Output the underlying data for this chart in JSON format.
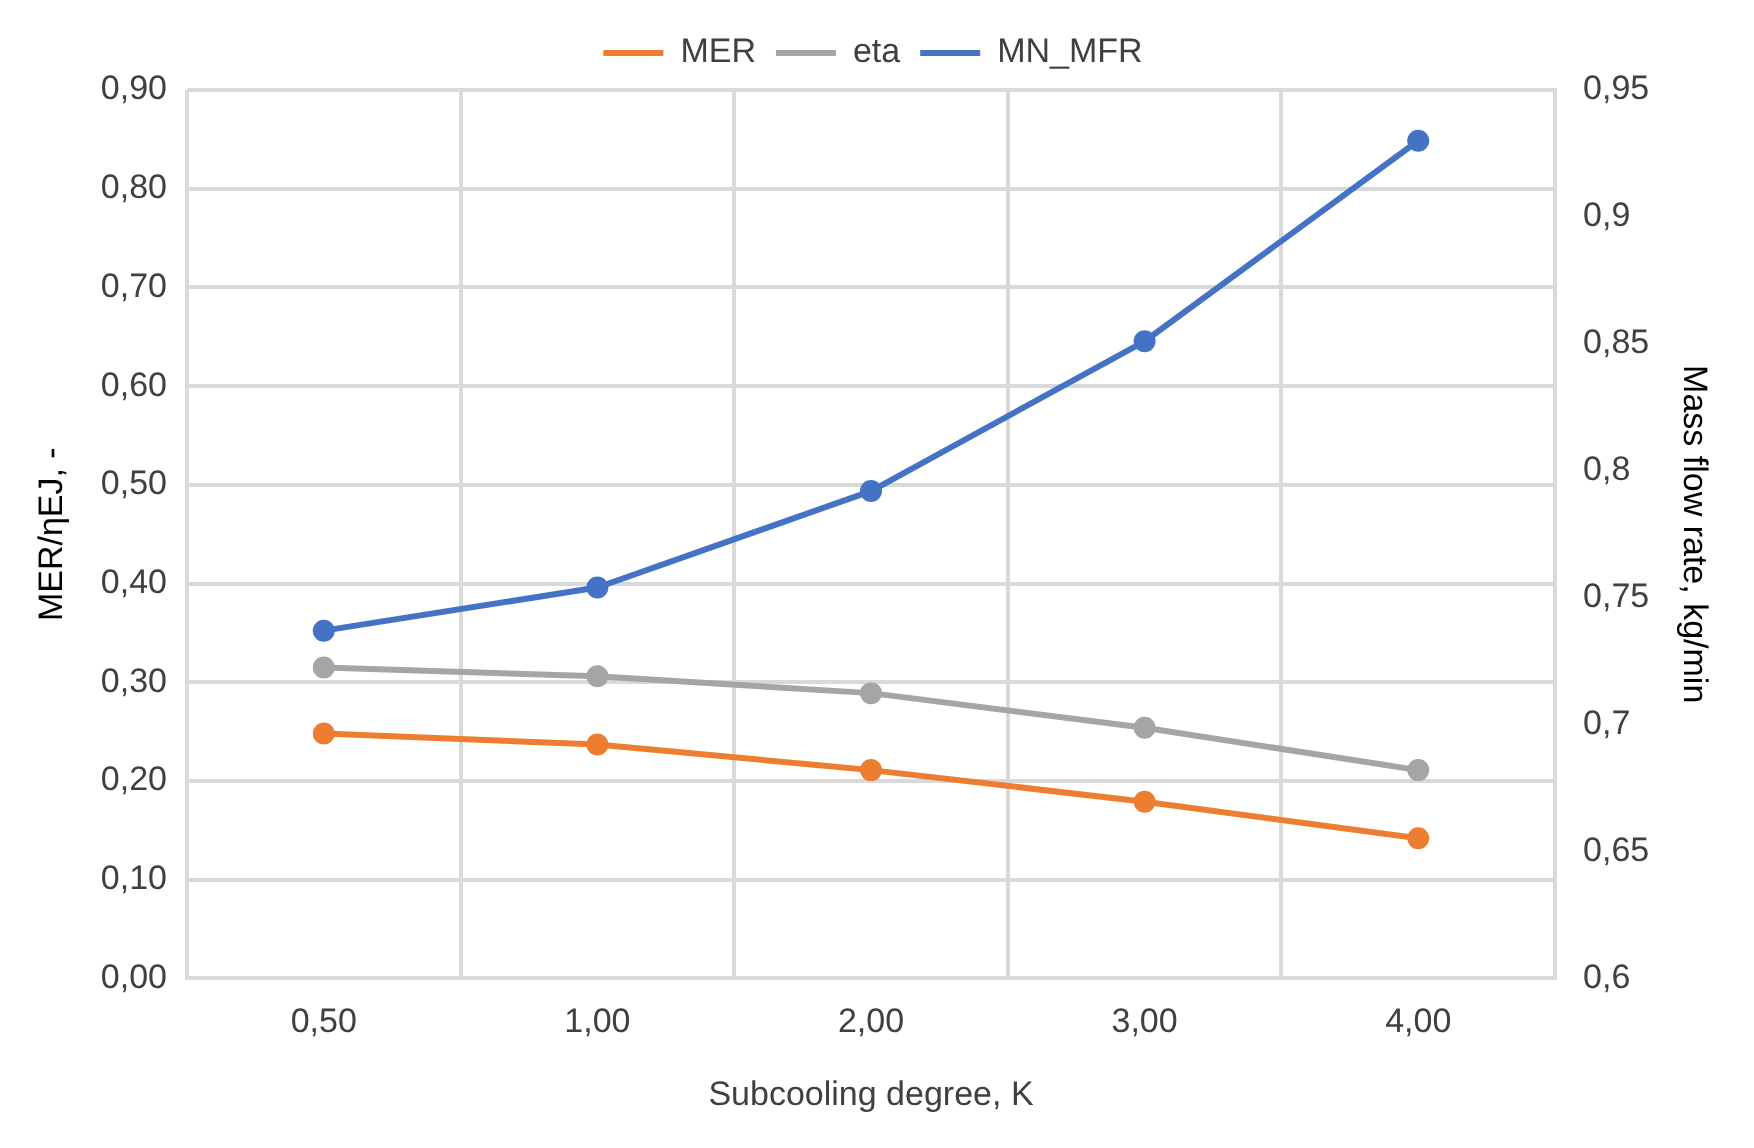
{
  "chart_data": {
    "type": "line",
    "xlabel": "Subcooling degree, K",
    "ylabel": "MER/ηEJ, -",
    "y2label": "Mass flow rate, kg/min",
    "categories": [
      "0,50",
      "1,00",
      "2,00",
      "3,00",
      "4,00"
    ],
    "series": [
      {
        "name": "MER",
        "color": "#ed7d31",
        "values": [
          0.248,
          0.237,
          0.211,
          0.179,
          0.142
        ]
      },
      {
        "name": "eta",
        "color": "#a5a5a5",
        "values": [
          0.315,
          0.306,
          0.289,
          0.254,
          0.211
        ]
      },
      {
        "name": "MN_MFR",
        "color": "#4472c4",
        "axis": "y2",
        "values": [
          0.737,
          0.754,
          0.792,
          0.851,
          0.93
        ]
      }
    ],
    "ylim": [
      0,
      0.9
    ],
    "yticks": [
      {
        "value": 0,
        "label": "0,00"
      },
      {
        "value": 0.1,
        "label": "0,10"
      },
      {
        "value": 0.2,
        "label": "0,20"
      },
      {
        "value": 0.3,
        "label": "0,30"
      },
      {
        "value": 0.4,
        "label": "0,40"
      },
      {
        "value": 0.5,
        "label": "0,50"
      },
      {
        "value": 0.6,
        "label": "0,60"
      },
      {
        "value": 0.7,
        "label": "0,70"
      },
      {
        "value": 0.8,
        "label": "0,80"
      },
      {
        "value": 0.9,
        "label": "0,90"
      }
    ],
    "y2lim": [
      0.6,
      0.95
    ],
    "y2ticks": [
      {
        "value": 0.6,
        "label": "0,6"
      },
      {
        "value": 0.65,
        "label": "0,65"
      },
      {
        "value": 0.7,
        "label": "0,7"
      },
      {
        "value": 0.75,
        "label": "0,75"
      },
      {
        "value": 0.8,
        "label": "0,8"
      },
      {
        "value": 0.85,
        "label": "0,85"
      },
      {
        "value": 0.9,
        "label": "0,9"
      },
      {
        "value": 0.95,
        "label": "0,95"
      }
    ],
    "grid": true,
    "legend": "top",
    "marker": "circle",
    "line_style": "solid"
  }
}
